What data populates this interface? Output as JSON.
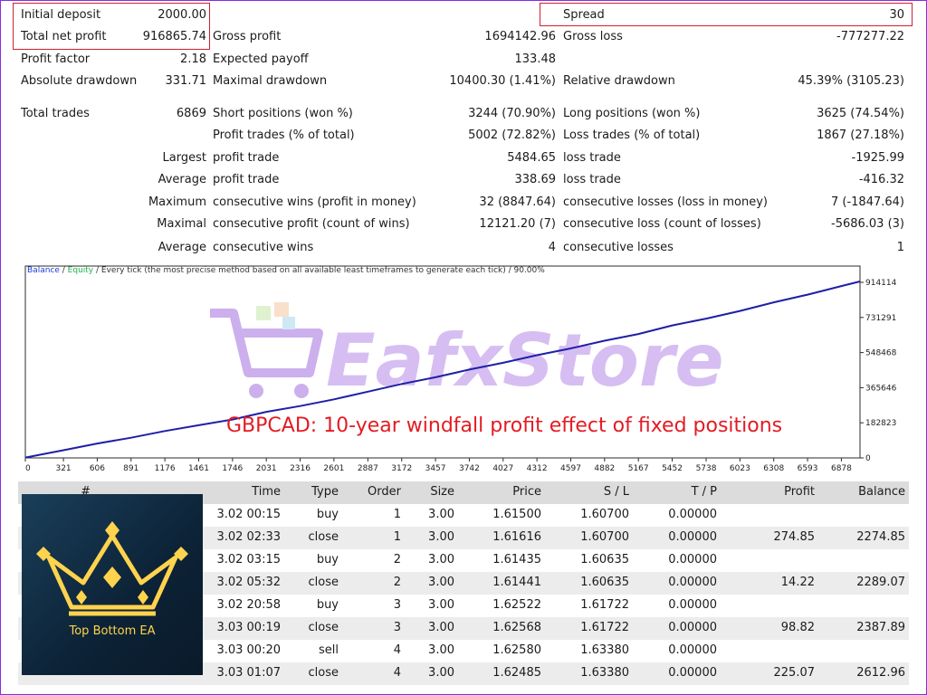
{
  "stats": {
    "initial_deposit": {
      "label": "Initial deposit",
      "value": "2000.00"
    },
    "total_net_profit": {
      "label": "Total net profit",
      "value": "916865.74"
    },
    "spread": {
      "label": "Spread",
      "value": "30"
    },
    "gross_profit": {
      "label": "Gross profit",
      "value": "1694142.96"
    },
    "gross_loss": {
      "label": "Gross loss",
      "value": "-777277.22"
    },
    "profit_factor": {
      "label": "Profit factor",
      "value": "2.18"
    },
    "expected_payoff": {
      "label": "Expected payoff",
      "value": "133.48"
    },
    "absolute_drawdown": {
      "label": "Absolute drawdown",
      "value": "331.71"
    },
    "maximal_drawdown": {
      "label": "Maximal drawdown",
      "value": "10400.30 (1.41%)"
    },
    "relative_drawdown": {
      "label": "Relative drawdown",
      "value": "45.39% (3105.23)"
    },
    "total_trades": {
      "label": "Total trades",
      "value": "6869"
    },
    "short_positions": {
      "label": "Short positions (won %)",
      "value": "3244 (70.90%)"
    },
    "long_positions": {
      "label": "Long positions (won %)",
      "value": "3625 (74.54%)"
    },
    "profit_trades": {
      "label": "Profit trades (% of total)",
      "value": "5002 (72.82%)"
    },
    "loss_trades": {
      "label": "Loss trades (% of total)",
      "value": "1867 (27.18%)"
    },
    "largest": {
      "label": "Largest",
      "profit_label": "profit trade",
      "profit_value": "5484.65",
      "loss_label": "loss trade",
      "loss_value": "-1925.99"
    },
    "average": {
      "label": "Average",
      "profit_label": "profit trade",
      "profit_value": "338.69",
      "loss_label": "loss trade",
      "loss_value": "-416.32"
    },
    "maximum": {
      "label": "Maximum",
      "profit_label": "consecutive wins (profit in money)",
      "profit_value": "32 (8847.64)",
      "loss_label": "consecutive losses (loss in money)",
      "loss_value": "7 (-1847.64)"
    },
    "maximal": {
      "label": "Maximal",
      "profit_label": "consecutive profit (count of wins)",
      "profit_value": "12121.20 (7)",
      "loss_label": "consecutive loss (count of losses)",
      "loss_value": "-5686.03 (3)"
    },
    "average2": {
      "label": "Average",
      "profit_label": "consecutive wins",
      "profit_value": "4",
      "loss_label": "consecutive losses",
      "loss_value": "1"
    }
  },
  "chart_caption": {
    "balance": "Balance",
    "sep1": " / ",
    "equity": "Equity",
    "rest": " / Every tick (the most precise method based on all available least timeframes to generate each tick) / 90.00%"
  },
  "chart_overlay": "GBPCAD: 10-year windfall profit effect of fixed positions",
  "watermark": {
    "text": "EafxStore"
  },
  "chart_data": {
    "type": "line",
    "x_ticks": [
      "0",
      "321",
      "606",
      "891",
      "1176",
      "1461",
      "1746",
      "2031",
      "2316",
      "2601",
      "2887",
      "3172",
      "3457",
      "3742",
      "4027",
      "4312",
      "4597",
      "4882",
      "5167",
      "5452",
      "5738",
      "6023",
      "6308",
      "6593",
      "6878"
    ],
    "y_ticks": [
      "0",
      "182823",
      "365646",
      "548468",
      "731291",
      "914114"
    ],
    "xlim": [
      0,
      7035
    ],
    "ylim": [
      0,
      914114
    ],
    "series": [
      {
        "name": "Balance",
        "color": "#1f1fa8",
        "x": [
          0,
          321,
          606,
          891,
          1176,
          1461,
          1746,
          2031,
          2316,
          2601,
          2887,
          3172,
          3457,
          3742,
          4027,
          4312,
          4597,
          4882,
          5167,
          5452,
          5738,
          6023,
          6308,
          6593,
          6878,
          7035
        ],
        "values": [
          2000,
          40000,
          75000,
          105000,
          140000,
          170000,
          200000,
          240000,
          270000,
          305000,
          345000,
          385000,
          420000,
          460000,
          495000,
          535000,
          570000,
          610000,
          645000,
          690000,
          725000,
          765000,
          810000,
          850000,
          895000,
          918866
        ]
      }
    ],
    "grid": false,
    "legend": "top-left"
  },
  "table": {
    "headers": [
      "#",
      "Time",
      "Type",
      "Order",
      "Size",
      "Price",
      "S / L",
      "T / P",
      "Profit",
      "Balance"
    ],
    "rows": [
      {
        "time": "3.02 00:15",
        "type": "buy",
        "order": "1",
        "size": "3.00",
        "price": "1.61500",
        "sl": "1.60700",
        "tp": "0.00000",
        "profit": "",
        "balance": ""
      },
      {
        "time": "3.02 02:33",
        "type": "close",
        "order": "1",
        "size": "3.00",
        "price": "1.61616",
        "sl": "1.60700",
        "tp": "0.00000",
        "profit": "274.85",
        "balance": "2274.85"
      },
      {
        "time": "3.02 03:15",
        "type": "buy",
        "order": "2",
        "size": "3.00",
        "price": "1.61435",
        "sl": "1.60635",
        "tp": "0.00000",
        "profit": "",
        "balance": ""
      },
      {
        "time": "3.02 05:32",
        "type": "close",
        "order": "2",
        "size": "3.00",
        "price": "1.61441",
        "sl": "1.60635",
        "tp": "0.00000",
        "profit": "14.22",
        "balance": "2289.07"
      },
      {
        "time": "3.02 20:58",
        "type": "buy",
        "order": "3",
        "size": "3.00",
        "price": "1.62522",
        "sl": "1.61722",
        "tp": "0.00000",
        "profit": "",
        "balance": ""
      },
      {
        "time": "3.03 00:19",
        "type": "close",
        "order": "3",
        "size": "3.00",
        "price": "1.62568",
        "sl": "1.61722",
        "tp": "0.00000",
        "profit": "98.82",
        "balance": "2387.89"
      },
      {
        "time": "3.03 00:20",
        "type": "sell",
        "order": "4",
        "size": "3.00",
        "price": "1.62580",
        "sl": "1.63380",
        "tp": "0.00000",
        "profit": "",
        "balance": ""
      },
      {
        "time": "3.03 01:07",
        "type": "close",
        "order": "4",
        "size": "3.00",
        "price": "1.62485",
        "sl": "1.63380",
        "tp": "0.00000",
        "profit": "225.07",
        "balance": "2612.96"
      }
    ]
  },
  "logo": {
    "text": "Top Bottom EA"
  },
  "colors": {
    "balance_line": "#1f1fa8",
    "equity_label": "#22b14c",
    "highlight_box": "#d1202f",
    "overlay_text": "#e31b23",
    "logo_gold": "#ffd34d"
  }
}
